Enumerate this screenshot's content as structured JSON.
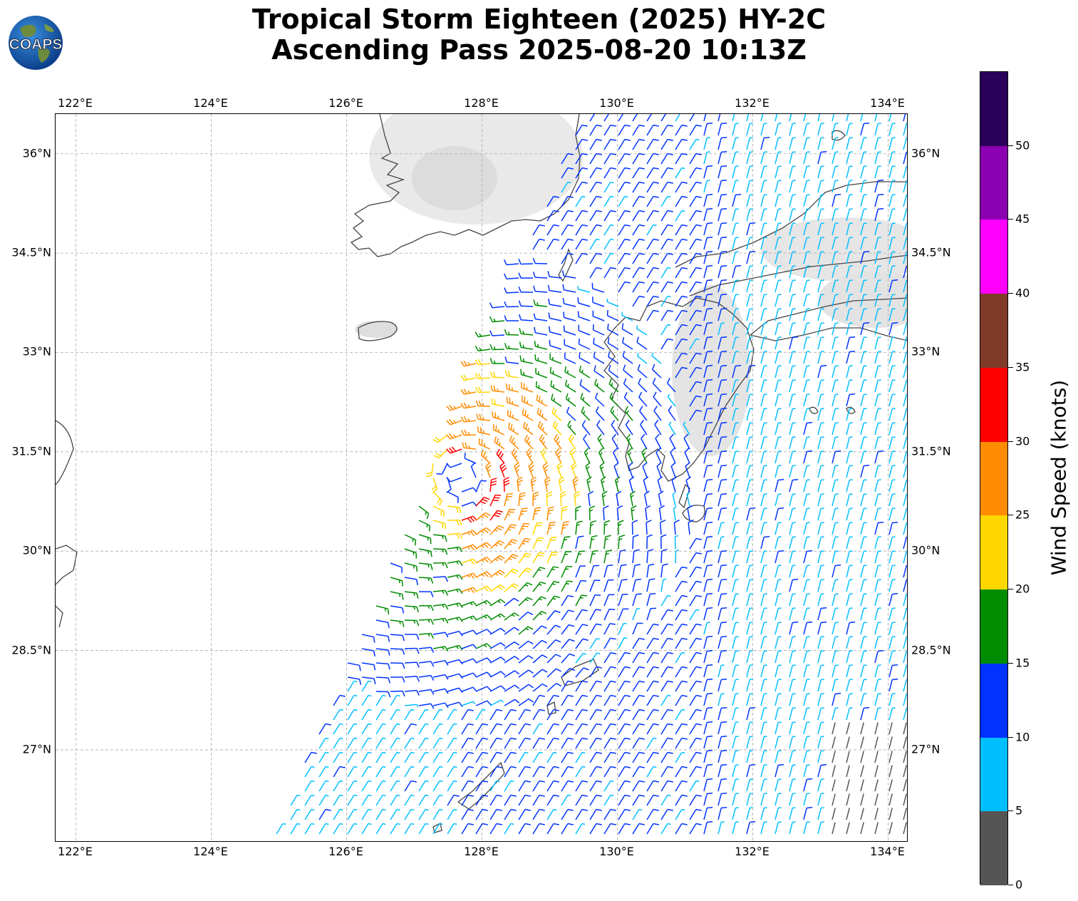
{
  "title": {
    "line1": "Tropical Storm Eighteen (2025) HY-2C",
    "line2": "Ascending Pass 2025-08-20 10:13Z"
  },
  "logo": {
    "text": "COAPS",
    "icon": "globe-logo-icon"
  },
  "map": {
    "lon_range": [
      121.7,
      134.3
    ],
    "lat_range": [
      25.6,
      36.6
    ],
    "lon_ticks": [
      "122°E",
      "124°E",
      "126°E",
      "128°E",
      "130°E",
      "132°E",
      "134°E"
    ],
    "lon_tick_values": [
      122,
      124,
      126,
      128,
      130,
      132,
      134
    ],
    "lat_ticks": [
      "27°N",
      "28.5°N",
      "30°N",
      "31.5°N",
      "33°N",
      "34.5°N",
      "36°N"
    ],
    "lat_tick_values": [
      27,
      28.5,
      30,
      31.5,
      33,
      34.5,
      36
    ],
    "gridlines": true,
    "storm_center": {
      "lon": 127.7,
      "lat": 31.1
    }
  },
  "colorbar": {
    "title": "Wind Speed (knots)",
    "tick_labels": [
      "0",
      "5",
      "10",
      "15",
      "20",
      "25",
      "30",
      "35",
      "40",
      "45",
      "50"
    ],
    "bins": [
      {
        "min": 0,
        "max": 5,
        "color": "#555555"
      },
      {
        "min": 5,
        "max": 10,
        "color": "#00bfff"
      },
      {
        "min": 10,
        "max": 15,
        "color": "#0033ff"
      },
      {
        "min": 15,
        "max": 20,
        "color": "#008c00"
      },
      {
        "min": 20,
        "max": 25,
        "color": "#ffd700"
      },
      {
        "min": 25,
        "max": 30,
        "color": "#ff8c00"
      },
      {
        "min": 30,
        "max": 35,
        "color": "#ff0000"
      },
      {
        "min": 35,
        "max": 40,
        "color": "#7f3a2a"
      },
      {
        "min": 40,
        "max": 45,
        "color": "#ff00ff"
      },
      {
        "min": 45,
        "max": 50,
        "color": "#8b00b0"
      },
      {
        "min": 50,
        "max": 55,
        "color": "#2a005a"
      }
    ]
  }
}
